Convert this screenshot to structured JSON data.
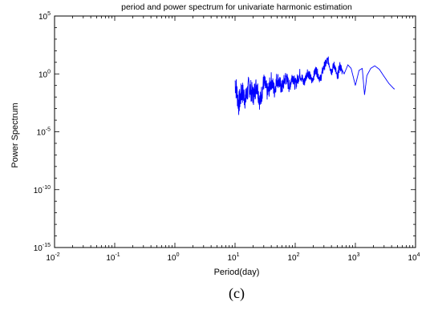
{
  "chart_data": {
    "type": "line",
    "title": "period and power spectrum for univariate harmonic estimation",
    "xlabel": "Period(day)",
    "ylabel": "Power Spectrum",
    "caption": "(c)",
    "x_scale": "log",
    "y_scale": "log",
    "xlim": [
      0.01,
      10000
    ],
    "ylim": [
      1e-15,
      100000
    ],
    "x_ticks": [
      {
        "value": 0.01,
        "base": "10",
        "exp": "-2"
      },
      {
        "value": 0.1,
        "base": "10",
        "exp": "-1"
      },
      {
        "value": 1,
        "base": "10",
        "exp": "0"
      },
      {
        "value": 10,
        "base": "10",
        "exp": "1"
      },
      {
        "value": 100,
        "base": "10",
        "exp": "2"
      },
      {
        "value": 1000,
        "base": "10",
        "exp": "3"
      },
      {
        "value": 10000,
        "base": "10",
        "exp": "4"
      }
    ],
    "y_ticks": [
      {
        "value": 100000,
        "base": "10",
        "exp": "5"
      },
      {
        "value": 1,
        "base": "10",
        "exp": "0"
      },
      {
        "value": 1e-05,
        "base": "10",
        "exp": "-5"
      },
      {
        "value": 1e-10,
        "base": "10",
        "exp": "-10"
      },
      {
        "value": 1e-15,
        "base": "10",
        "exp": "-15"
      }
    ],
    "grid": false,
    "series": [
      {
        "color": "#0000ff",
        "x_range": [
          10,
          4500
        ],
        "points": [
          [
            10.0,
            0.4
          ],
          [
            11.5,
            0.004
          ],
          [
            13.0,
            0.05
          ],
          [
            15.0,
            0.01
          ],
          [
            17.0,
            0.15
          ],
          [
            20.0,
            0.02
          ],
          [
            23.0,
            0.2
          ],
          [
            26.0,
            0.005
          ],
          [
            30.0,
            0.3
          ],
          [
            35.0,
            0.03
          ],
          [
            40.0,
            0.4
          ],
          [
            45.0,
            0.05
          ],
          [
            50.0,
            0.6
          ],
          [
            60.0,
            0.08
          ],
          [
            70.0,
            0.8
          ],
          [
            80.0,
            0.1
          ],
          [
            90.0,
            1.0
          ],
          [
            100.0,
            0.15
          ],
          [
            120.0,
            1.3
          ],
          [
            140.0,
            0.2
          ],
          [
            160.0,
            2.0
          ],
          [
            190.0,
            0.3
          ],
          [
            220.0,
            3.0
          ],
          [
            260.0,
            0.4
          ],
          [
            300.0,
            5.0
          ],
          [
            350.0,
            20.0
          ],
          [
            400.0,
            2.0
          ],
          [
            450.0,
            8.0
          ],
          [
            500.0,
            0.5
          ],
          [
            550.0,
            6.0
          ],
          [
            650.0,
            1.0
          ],
          [
            750.0,
            6.0
          ],
          [
            850.0,
            3.0
          ],
          [
            1000.0,
            0.1
          ],
          [
            1150.0,
            2.0
          ],
          [
            1300.0,
            3.0
          ],
          [
            1420.0,
            0.015
          ],
          [
            1550.0,
            0.7
          ],
          [
            1800.0,
            3.0
          ],
          [
            2100.0,
            5.0
          ],
          [
            2500.0,
            2.5
          ],
          [
            3000.0,
            0.6
          ],
          [
            3600.0,
            0.15
          ],
          [
            4400.0,
            0.05
          ]
        ]
      }
    ]
  }
}
